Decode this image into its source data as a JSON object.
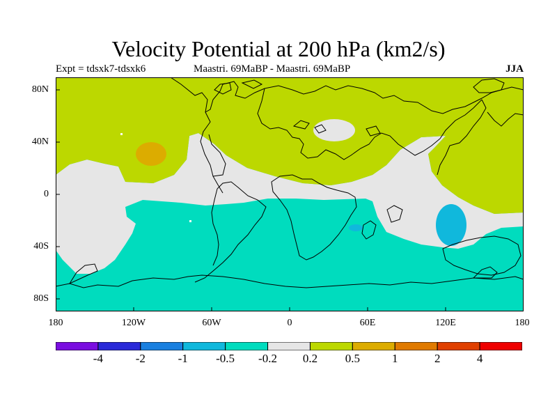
{
  "title": "Velocity Potential at 200 hPa (km2/s)",
  "subtitle_left": "Expt = tdsxk7-tdsxk6",
  "subtitle_center": "Maastri.  69MaBP - Maastri.  69MaBP",
  "subtitle_right": "JJA",
  "y_axis_labels": [
    "80N",
    "40N",
    "0",
    "40S",
    "80S"
  ],
  "x_axis_labels": [
    "180",
    "120W",
    "60W",
    "0",
    "60E",
    "120E",
    "180"
  ],
  "colorbar": {
    "colors": [
      "#7a0ee0",
      "#2a2ad8",
      "#1a80e0",
      "#10b8dc",
      "#00dcbe",
      "#e6e6e6",
      "#bcd800",
      "#dcac00",
      "#e07a00",
      "#e04000",
      "#ee0000"
    ],
    "labels": [
      "-4",
      "-2",
      "-1",
      "-0.5",
      "-0.2",
      "0.2",
      "0.5",
      "1",
      "2",
      "4"
    ]
  },
  "map_colors": {
    "positive": "#bcd800",
    "neutral": "#e6e6e6",
    "negative": "#00dcbe",
    "strong_negative": "#10b8dc",
    "strong_positive": "#dcac00",
    "coast": "#000000"
  }
}
